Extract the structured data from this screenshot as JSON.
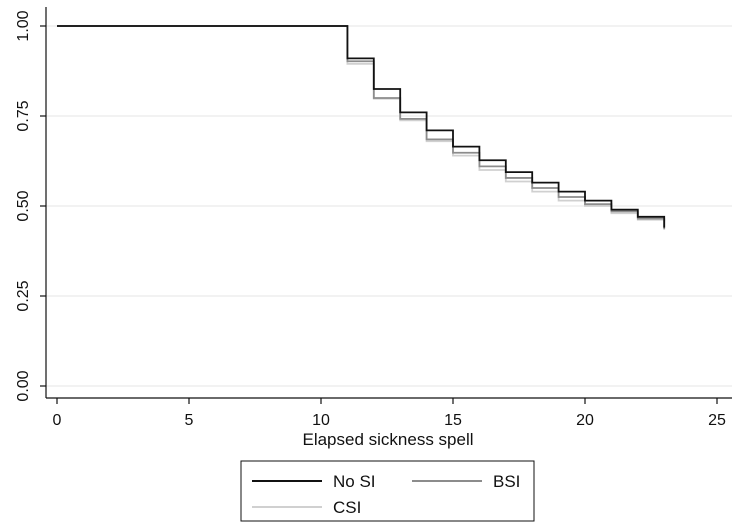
{
  "chart_data": {
    "type": "line",
    "title": "",
    "xlabel": "Elapsed sickness spell",
    "ylabel": "",
    "xlim": [
      0,
      25
    ],
    "ylim": [
      0,
      1
    ],
    "x_ticks": [
      "0",
      "5",
      "10",
      "15",
      "20",
      "25"
    ],
    "y_ticks": [
      "0.00",
      "0.25",
      "0.50",
      "0.75",
      "1.00"
    ],
    "grid": true,
    "legend_position": "bottom",
    "series": [
      {
        "name": "No SI",
        "color": "#111111",
        "x": [
          0,
          11,
          12,
          13,
          14,
          15,
          16,
          17,
          18,
          19,
          20,
          21,
          22,
          23
        ],
        "y": [
          1.0,
          0.91,
          0.825,
          0.76,
          0.71,
          0.665,
          0.627,
          0.594,
          0.565,
          0.54,
          0.515,
          0.49,
          0.47,
          0.44
        ]
      },
      {
        "name": "BSI",
        "color": "#8c8c8c",
        "x": [
          0,
          11,
          12,
          13,
          14,
          15,
          16,
          17,
          18,
          19,
          20,
          21,
          22,
          23
        ],
        "y": [
          1.0,
          0.902,
          0.8,
          0.742,
          0.685,
          0.648,
          0.61,
          0.578,
          0.55,
          0.525,
          0.505,
          0.485,
          0.465,
          0.435
        ]
      },
      {
        "name": "CSI",
        "color": "#d0d0d0",
        "x": [
          0,
          11,
          12,
          13,
          14,
          15,
          16,
          17,
          18,
          19,
          20,
          21,
          22,
          23
        ],
        "y": [
          1.0,
          0.895,
          0.798,
          0.738,
          0.68,
          0.64,
          0.6,
          0.568,
          0.54,
          0.515,
          0.5,
          0.48,
          0.462,
          0.458
        ]
      }
    ]
  }
}
